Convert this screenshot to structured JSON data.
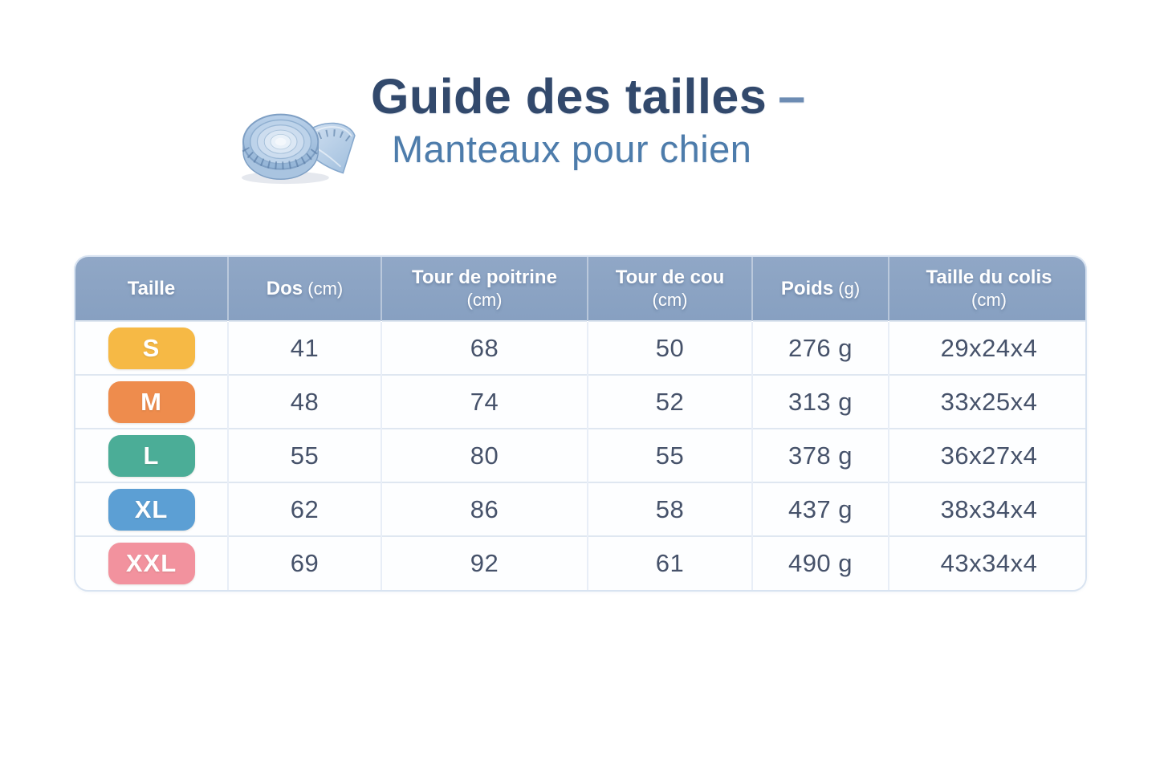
{
  "header": {
    "title": "Guide des tailles",
    "dash": "–",
    "subtitle": "Manteaux pour chien",
    "icon": "measuring-tape"
  },
  "colors": {
    "title_text": "#32496c",
    "dash_text": "#6d8cb3",
    "subtitle_text": "#4d7cab",
    "table_header_bg": "#8ba3c3",
    "table_header_text": "#ffffff",
    "table_border": "#d8e3f1",
    "row_divider": "#dfe7f1",
    "cell_text": "#46526a",
    "badge_s": "#f6b945",
    "badge_m": "#ee8c4d",
    "badge_l": "#4bad97",
    "badge_xl": "#5c9fd4",
    "badge_xxl": "#f2929e"
  },
  "table": {
    "columns": [
      {
        "key": "taille",
        "label": "Taille",
        "unit": "",
        "unit_inline": false
      },
      {
        "key": "dos",
        "label": "Dos",
        "unit": "(cm)",
        "unit_inline": true
      },
      {
        "key": "poitrine",
        "label": "Tour de poitrine",
        "unit": "(cm)",
        "unit_inline": false
      },
      {
        "key": "cou",
        "label": "Tour de cou",
        "unit": "(cm)",
        "unit_inline": false
      },
      {
        "key": "poids",
        "label": "Poids",
        "unit": "(g)",
        "unit_inline": true
      },
      {
        "key": "colis",
        "label": "Taille du colis",
        "unit": "(cm)",
        "unit_inline": false
      }
    ],
    "rows": [
      {
        "size": "S",
        "badge_color": "#f6b945",
        "values": [
          "41",
          "68",
          "50",
          "276 g",
          "29x24x4"
        ]
      },
      {
        "size": "M",
        "badge_color": "#ee8c4d",
        "values": [
          "48",
          "74",
          "52",
          "313 g",
          "33x25x4"
        ]
      },
      {
        "size": "L",
        "badge_color": "#4bad97",
        "values": [
          "55",
          "80",
          "55",
          "378 g",
          "36x27x4"
        ]
      },
      {
        "size": "XL",
        "badge_color": "#5c9fd4",
        "values": [
          "62",
          "86",
          "58",
          "437 g",
          "38x34x4"
        ]
      },
      {
        "size": "XXL",
        "badge_color": "#f2929e",
        "values": [
          "69",
          "92",
          "61",
          "490 g",
          "43x34x4"
        ]
      }
    ]
  },
  "chart_data": {
    "type": "table",
    "title": "Guide des tailles – Manteaux pour chien",
    "columns": [
      "Taille",
      "Dos (cm)",
      "Tour de poitrine (cm)",
      "Tour de cou (cm)",
      "Poids (g)",
      "Taille du colis (cm)"
    ],
    "rows": [
      [
        "S",
        41,
        68,
        50,
        "276 g",
        "29x24x4"
      ],
      [
        "M",
        48,
        74,
        52,
        "313 g",
        "33x25x4"
      ],
      [
        "L",
        55,
        80,
        55,
        "378 g",
        "36x27x4"
      ],
      [
        "XL",
        62,
        86,
        58,
        "437 g",
        "38x34x4"
      ],
      [
        "XXL",
        69,
        92,
        61,
        "490 g",
        "43x34x4"
      ]
    ]
  }
}
